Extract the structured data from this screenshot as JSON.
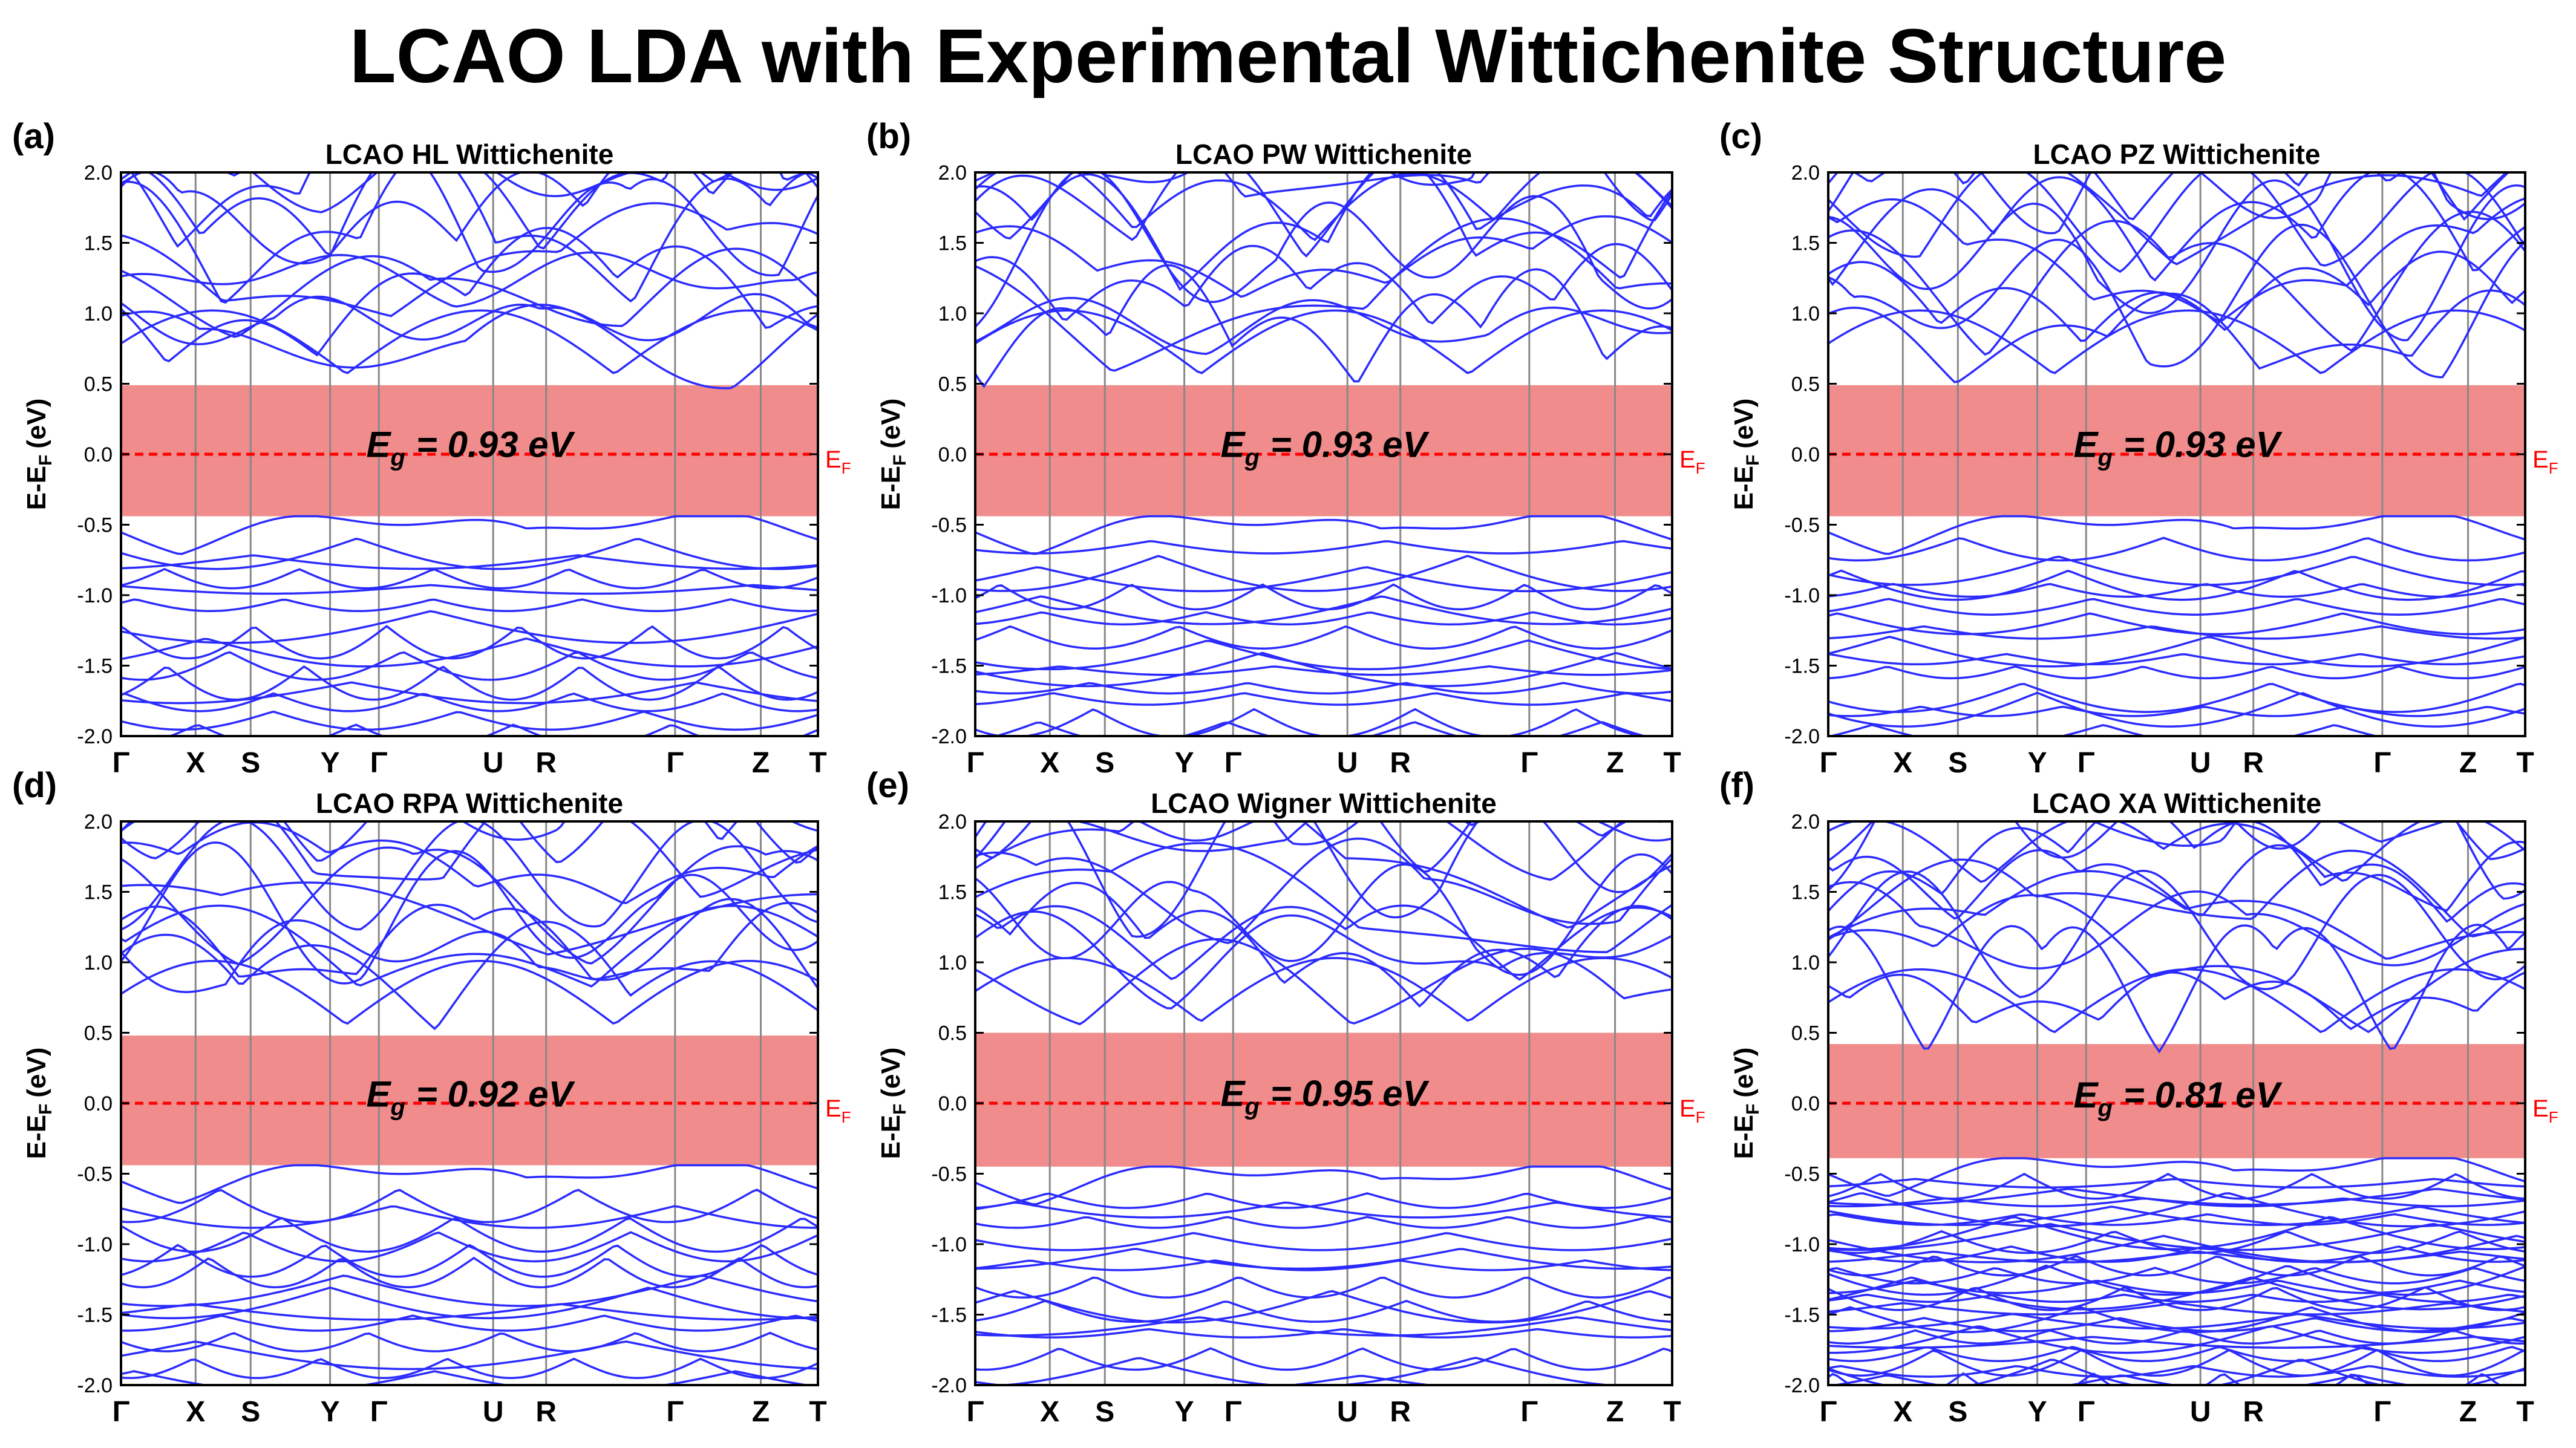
{
  "figure_title": "LCAO LDA with Experimental Wittichenite Structure",
  "colors": {
    "band": "#2b2bff",
    "gap_fill": "#f08080",
    "fermi": "#ff0000",
    "vline": "#888888",
    "axis": "#000000"
  },
  "chart_data": [
    {
      "type": "line",
      "panel_label": "(a)",
      "title": "LCAO HL Wittichenite",
      "ylabel": "E-E",
      "ylabel_sub": "F",
      "ylabel_unit": "(eV)",
      "ylim": [
        -2.0,
        2.0
      ],
      "yticks": [
        -2.0,
        -1.5,
        -1.0,
        -0.5,
        0.0,
        0.5,
        1.0,
        1.5,
        2.0
      ],
      "ytick_labels": [
        "-2.0",
        "-1.5",
        "-1.0",
        "-0.5",
        "0.0",
        "0.5",
        "1.0",
        "1.5",
        "2.0"
      ],
      "kpath_labels": [
        "Γ",
        "X",
        "S",
        "Y",
        "Γ",
        "U",
        "R",
        "Γ",
        "Z",
        "T"
      ],
      "kpath_pos": [
        0.0,
        0.107,
        0.186,
        0.3,
        0.37,
        0.534,
        0.61,
        0.795,
        0.918,
        1.0
      ],
      "vbm": -0.44,
      "cbm": 0.49,
      "fermi_level": 0.0,
      "fermi_label": "E",
      "fermi_label_sub": "F",
      "gap_label": "E",
      "gap_label_sub": "g",
      "gap_value": "= 0.93 eV",
      "dense_valence": false
    },
    {
      "type": "line",
      "panel_label": "(b)",
      "title": "LCAO PW Wittichenite",
      "ylabel": "E-E",
      "ylabel_sub": "F",
      "ylabel_unit": "(eV)",
      "ylim": [
        -2.0,
        2.0
      ],
      "yticks": [
        -2.0,
        -1.5,
        -1.0,
        -0.5,
        0.0,
        0.5,
        1.0,
        1.5,
        2.0
      ],
      "ytick_labels": [
        "-2.0",
        "-1.5",
        "-1.0",
        "-0.5",
        "0.0",
        "0.5",
        "1.0",
        "1.5",
        "2.0"
      ],
      "kpath_labels": [
        "Γ",
        "X",
        "S",
        "Y",
        "Γ",
        "U",
        "R",
        "Γ",
        "Z",
        "T"
      ],
      "kpath_pos": [
        0.0,
        0.107,
        0.186,
        0.3,
        0.37,
        0.534,
        0.61,
        0.795,
        0.918,
        1.0
      ],
      "vbm": -0.44,
      "cbm": 0.49,
      "fermi_level": 0.0,
      "fermi_label": "E",
      "fermi_label_sub": "F",
      "gap_label": "E",
      "gap_label_sub": "g",
      "gap_value": "= 0.93 eV",
      "dense_valence": false
    },
    {
      "type": "line",
      "panel_label": "(c)",
      "title": "LCAO PZ Wittichenite",
      "ylabel": "E-E",
      "ylabel_sub": "F",
      "ylabel_unit": "(eV)",
      "ylim": [
        -2.0,
        2.0
      ],
      "yticks": [
        -2.0,
        -1.5,
        -1.0,
        -0.5,
        0.0,
        0.5,
        1.0,
        1.5,
        2.0
      ],
      "ytick_labels": [
        "-2.0",
        "-1.5",
        "-1.0",
        "-0.5",
        "0.0",
        "0.5",
        "1.0",
        "1.5",
        "2.0"
      ],
      "kpath_labels": [
        "Γ",
        "X",
        "S",
        "Y",
        "Γ",
        "U",
        "R",
        "Γ",
        "Z",
        "T"
      ],
      "kpath_pos": [
        0.0,
        0.107,
        0.186,
        0.3,
        0.37,
        0.534,
        0.61,
        0.795,
        0.918,
        1.0
      ],
      "vbm": -0.44,
      "cbm": 0.49,
      "fermi_level": 0.0,
      "fermi_label": "E",
      "fermi_label_sub": "F",
      "gap_label": "E",
      "gap_label_sub": "g",
      "gap_value": "= 0.93 eV",
      "dense_valence": false
    },
    {
      "type": "line",
      "panel_label": "(d)",
      "title": "LCAO RPA Wittichenite",
      "ylabel": "E-E",
      "ylabel_sub": "F",
      "ylabel_unit": "(eV)",
      "ylim": [
        -2.0,
        2.0
      ],
      "yticks": [
        -2.0,
        -1.5,
        -1.0,
        -0.5,
        0.0,
        0.5,
        1.0,
        1.5,
        2.0
      ],
      "ytick_labels": [
        "-2.0",
        "-1.5",
        "-1.0",
        "-0.5",
        "0.0",
        "0.5",
        "1.0",
        "1.5",
        "2.0"
      ],
      "kpath_labels": [
        "Γ",
        "X",
        "S",
        "Y",
        "Γ",
        "U",
        "R",
        "Γ",
        "Z",
        "T"
      ],
      "kpath_pos": [
        0.0,
        0.107,
        0.186,
        0.3,
        0.37,
        0.534,
        0.61,
        0.795,
        0.918,
        1.0
      ],
      "vbm": -0.44,
      "cbm": 0.48,
      "fermi_level": 0.0,
      "fermi_label": "E",
      "fermi_label_sub": "F",
      "gap_label": "E",
      "gap_label_sub": "g",
      "gap_value": "= 0.92 eV",
      "dense_valence": false
    },
    {
      "type": "line",
      "panel_label": "(e)",
      "title": "LCAO Wigner Wittichenite",
      "ylabel": "E-E",
      "ylabel_sub": "F",
      "ylabel_unit": "(eV)",
      "ylim": [
        -2.0,
        2.0
      ],
      "yticks": [
        -2.0,
        -1.5,
        -1.0,
        -0.5,
        0.0,
        0.5,
        1.0,
        1.5,
        2.0
      ],
      "ytick_labels": [
        "-2.0",
        "-1.5",
        "-1.0",
        "-0.5",
        "0.0",
        "0.5",
        "1.0",
        "1.5",
        "2.0"
      ],
      "kpath_labels": [
        "Γ",
        "X",
        "S",
        "Y",
        "Γ",
        "U",
        "R",
        "Γ",
        "Z",
        "T"
      ],
      "kpath_pos": [
        0.0,
        0.107,
        0.186,
        0.3,
        0.37,
        0.534,
        0.61,
        0.795,
        0.918,
        1.0
      ],
      "vbm": -0.45,
      "cbm": 0.5,
      "fermi_level": 0.0,
      "fermi_label": "E",
      "fermi_label_sub": "F",
      "gap_label": "E",
      "gap_label_sub": "g",
      "gap_value": "= 0.95 eV",
      "dense_valence": false
    },
    {
      "type": "line",
      "panel_label": "(f)",
      "title": "LCAO XA Wittichenite",
      "ylabel": "E-E",
      "ylabel_sub": "F",
      "ylabel_unit": "(eV)",
      "ylim": [
        -2.0,
        2.0
      ],
      "yticks": [
        -2.0,
        -1.5,
        -1.0,
        -0.5,
        0.0,
        0.5,
        1.0,
        1.5,
        2.0
      ],
      "ytick_labels": [
        "-2.0",
        "-1.5",
        "-1.0",
        "-0.5",
        "0.0",
        "0.5",
        "1.0",
        "1.5",
        "2.0"
      ],
      "kpath_labels": [
        "Γ",
        "X",
        "S",
        "Y",
        "Γ",
        "U",
        "R",
        "Γ",
        "Z",
        "T"
      ],
      "kpath_pos": [
        0.0,
        0.107,
        0.186,
        0.3,
        0.37,
        0.534,
        0.61,
        0.795,
        0.918,
        1.0
      ],
      "vbm": -0.39,
      "cbm": 0.42,
      "fermi_level": 0.0,
      "fermi_label": "E",
      "fermi_label_sub": "F",
      "gap_label": "E",
      "gap_label_sub": "g",
      "gap_value": "= 0.81 eV",
      "dense_valence": true
    }
  ]
}
